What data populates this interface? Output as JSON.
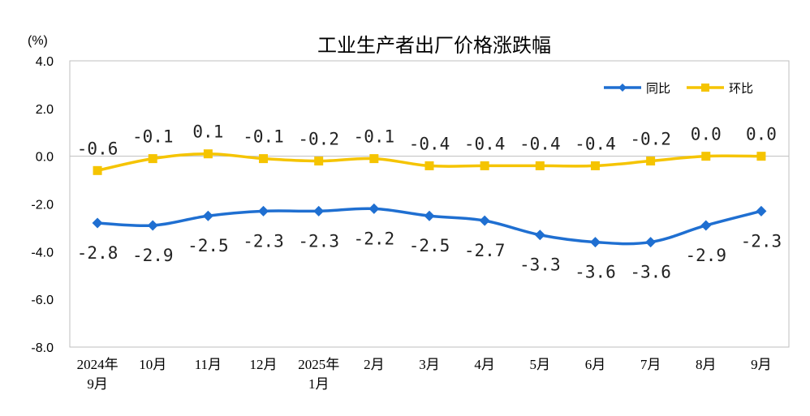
{
  "chart_data": {
    "type": "line",
    "title": "工业生产者出厂价格涨跌幅",
    "ylabel": "(%)",
    "xlabel": "",
    "ylim": [
      -8.0,
      4.0
    ],
    "yticks": [
      "4.0",
      "2.0",
      "0.0",
      "-2.0",
      "-4.0",
      "-6.0",
      "-8.0"
    ],
    "ytick_values": [
      4,
      2,
      0,
      -2,
      -4,
      -6,
      -8
    ],
    "categories": [
      [
        "2024年",
        "9月"
      ],
      [
        "10月"
      ],
      [
        "11月"
      ],
      [
        "12月"
      ],
      [
        "2025年",
        "1月"
      ],
      [
        "2月"
      ],
      [
        "3月"
      ],
      [
        "4月"
      ],
      [
        "5月"
      ],
      [
        "6月"
      ],
      [
        "7月"
      ],
      [
        "8月"
      ],
      [
        "9月"
      ]
    ],
    "grid": false,
    "legend_position": "top-right",
    "series": [
      {
        "name": "同比",
        "color": "#1f6fd1",
        "marker": "diamond",
        "values": [
          -2.8,
          -2.9,
          -2.5,
          -2.3,
          -2.3,
          -2.2,
          -2.5,
          -2.7,
          -3.3,
          -3.6,
          -3.6,
          -2.9,
          -2.3
        ],
        "labels": [
          "-2.8",
          "-2.9",
          "-2.5",
          "-2.3",
          "-2.3",
          "-2.2",
          "-2.5",
          "-2.7",
          "-3.3",
          "-3.6",
          "-3.6",
          "-2.9",
          "-2.3"
        ]
      },
      {
        "name": "环比",
        "color": "#f5c400",
        "marker": "square",
        "values": [
          -0.6,
          -0.1,
          0.1,
          -0.1,
          -0.2,
          -0.1,
          -0.4,
          -0.4,
          -0.4,
          -0.4,
          -0.2,
          0.0,
          0.0
        ],
        "labels": [
          "-0.6",
          "-0.1",
          "0.1",
          "-0.1",
          "-0.2",
          "-0.1",
          "-0.4",
          "-0.4",
          "-0.4",
          "-0.4",
          "-0.2",
          "0.0",
          "0.0"
        ]
      }
    ]
  }
}
